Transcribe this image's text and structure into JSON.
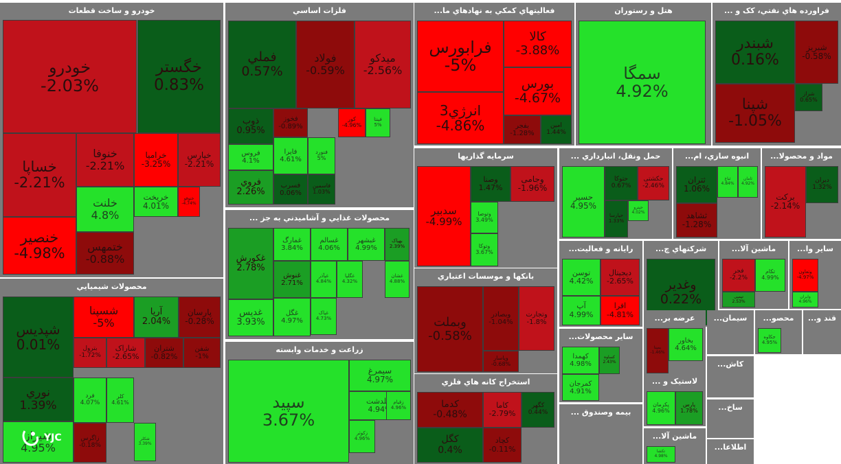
{
  "logo": {
    "text": "YJC"
  },
  "colors": {
    "strong_neg": "#ff0000",
    "mid_neg": "#c0121b",
    "weak_neg": "#8e0b0b",
    "weak_pos": "#0a5d1a",
    "mid_pos": "#1b9e24",
    "strong_pos": "#25e12a"
  },
  "chart_data": {
    "type": "treemap",
    "title": "",
    "sectors": [
      {
        "name": "خودرو و ساخت قطعات",
        "tiles": [
          {
            "symbol": "خودرو",
            "change": "-2.03%"
          },
          {
            "symbol": "خگستر",
            "change": "0.83%"
          },
          {
            "symbol": "خساپا",
            "change": "-2.21%"
          },
          {
            "symbol": "خنوفا",
            "change": "-2.21%"
          },
          {
            "symbol": "خراميا",
            "change": "-3.25%"
          },
          {
            "symbol": "خپارس",
            "change": "-2.21%"
          },
          {
            "symbol": "خلنت",
            "change": "4.8%"
          },
          {
            "symbol": "خریخت",
            "change": "4.01%"
          },
          {
            "symbol": "ختوقو",
            "change": "-4.74%"
          },
          {
            "symbol": "خنصير",
            "change": "-4.98%"
          },
          {
            "symbol": "ختمهس",
            "change": "-0.88%"
          }
        ]
      },
      {
        "name": "محصولات شيميايي",
        "tiles": [
          {
            "symbol": "شپديس",
            "change": "0.01%"
          },
          {
            "symbol": "شسپنا",
            "change": "-5%"
          },
          {
            "symbol": "آريا",
            "change": "2.04%"
          },
          {
            "symbol": "پارسان",
            "change": "-0.28%"
          },
          {
            "symbol": "بترول",
            "change": "-1.72%"
          },
          {
            "symbol": "شاراک",
            "change": "-2.65%"
          },
          {
            "symbol": "شتران",
            "change": "-0.82%"
          },
          {
            "symbol": "شفن",
            "change": "-1%"
          },
          {
            "symbol": "نوري",
            "change": "1.39%"
          },
          {
            "symbol": "فرد",
            "change": "4.07%"
          },
          {
            "symbol": "کلر",
            "change": "4.61%"
          },
          {
            "symbol": "شيراز",
            "change": "4.95%"
          },
          {
            "symbol": "زاگرس",
            "change": "-0.18%"
          },
          {
            "symbol": "شکلر",
            "change": "3.39%"
          }
        ]
      },
      {
        "name": "فلزات اساسي",
        "tiles": [
          {
            "symbol": "فملي",
            "change": "0.57%"
          },
          {
            "symbol": "فولاد",
            "change": "-0.59%"
          },
          {
            "symbol": "ميدكو",
            "change": "-2.56%"
          },
          {
            "symbol": "ذوب",
            "change": "0.95%"
          },
          {
            "symbol": "فخوز",
            "change": "-0.89%"
          },
          {
            "symbol": "فروس",
            "change": "4.1%"
          },
          {
            "symbol": "فايرا",
            "change": "4.61%"
          },
          {
            "symbol": "فنورد",
            "change": "5%"
          },
          {
            "symbol": "کور",
            "change": "-4.96%"
          },
          {
            "symbol": "فپنتا",
            "change": "5%"
          },
          {
            "symbol": "فروي",
            "change": "2.26%"
          },
          {
            "symbol": "فسرب",
            "change": "0.06%"
          },
          {
            "symbol": "فاسمين",
            "change": "1.03%"
          }
        ]
      },
      {
        "name": "محصولات غذايي و آشاميدني به جز ...",
        "tiles": [
          {
            "symbol": "غكورش",
            "change": "2.78%"
          },
          {
            "symbol": "غمارگ",
            "change": "3.84%"
          },
          {
            "symbol": "غسالم",
            "change": "4.06%"
          },
          {
            "symbol": "غبشهر",
            "change": "4.99%"
          },
          {
            "symbol": "بهپاک",
            "change": "2.39%"
          },
          {
            "symbol": "غنوش",
            "change": "2.71%"
          },
          {
            "symbol": "غپآذر",
            "change": "4.84%"
          },
          {
            "symbol": "غگلپا",
            "change": "4.32%"
          },
          {
            "symbol": "غدیس",
            "change": "3.93%"
          },
          {
            "symbol": "غگل",
            "change": "4.97%"
          },
          {
            "symbol": "غپاک",
            "change": "4.73%"
          },
          {
            "symbol": "غشان",
            "change": "4.88%"
          }
        ]
      },
      {
        "name": "زراعت و خدمات وابسته",
        "tiles": [
          {
            "symbol": "سپيد",
            "change": "3.67%"
          },
          {
            "symbol": "سيمرغ",
            "change": "4.97%"
          },
          {
            "symbol": "زگلدشت",
            "change": "4.94%"
          },
          {
            "symbol": "زقيام",
            "change": "4.96%"
          },
          {
            "symbol": "زکوثر",
            "change": "4.96%"
          }
        ]
      },
      {
        "name": "فعاليتهاي كمكي به نهادهاي ما...",
        "tiles": [
          {
            "symbol": "فرابورس",
            "change": "-5%"
          },
          {
            "symbol": "کالا",
            "change": "-3.88%"
          },
          {
            "symbol": "انرژي3",
            "change": "-4.86%"
          },
          {
            "symbol": "بورس",
            "change": "-4.67%"
          },
          {
            "symbol": "امين",
            "change": "1.44%"
          },
          {
            "symbol": "بفجر",
            "change": "-1.28%"
          }
        ]
      },
      {
        "name": "هتل و رستوران",
        "tiles": [
          {
            "symbol": "سمگا",
            "change": "4.92%"
          }
        ]
      },
      {
        "name": "فراورده هاي نفتي، كک و ...",
        "tiles": [
          {
            "symbol": "شبندر",
            "change": "0.16%"
          },
          {
            "symbol": "شبريز",
            "change": "-0.58%"
          },
          {
            "symbol": "شپنا",
            "change": "-1.05%"
          },
          {
            "symbol": "شراز",
            "change": "0.65%"
          }
        ]
      },
      {
        "name": "سرمايه گذاريها",
        "tiles": [
          {
            "symbol": "سدبير",
            "change": "-4.99%"
          },
          {
            "symbol": "وصنا",
            "change": "1.47%"
          },
          {
            "symbol": "وجامی",
            "change": "-1.96%"
          },
          {
            "symbol": "وتوصا",
            "change": "3.49%"
          },
          {
            "symbol": "وتوکا",
            "change": "3.67%"
          }
        ]
      },
      {
        "name": "حمل ونقل، انبارداري ...",
        "tiles": [
          {
            "symbol": "حسير",
            "change": "4.95%"
          },
          {
            "symbol": "حتوكا",
            "change": "0.67%"
          },
          {
            "symbol": "حکشتی",
            "change": "-2.46%"
          },
          {
            "symbol": "حپارسا",
            "change": "1.33%"
          },
          {
            "symbol": "حپترو",
            "change": "4.02%"
          }
        ]
      },
      {
        "name": "انبوه سازي، ام...",
        "tiles": [
          {
            "symbol": "ثتران",
            "change": "1.06%"
          },
          {
            "symbol": "ثباغ",
            "change": "4.84%"
          },
          {
            "symbol": "ثشاهد",
            "change": "-1.28%"
          },
          {
            "symbol": "ثامان",
            "change": "4.92%"
          }
        ]
      },
      {
        "name": "مواد و محصولا...",
        "tiles": [
          {
            "symbol": "بركت",
            "change": "-2.14%"
          },
          {
            "symbol": "دبران",
            "change": "1.32%"
          }
        ]
      },
      {
        "name": "بانكها و موسسات اعتباري",
        "tiles": [
          {
            "symbol": "وبملت",
            "change": "-0.58%"
          },
          {
            "symbol": "وبصادر",
            "change": "-1.04%"
          },
          {
            "symbol": "وتجارت",
            "change": "-1.8%"
          },
          {
            "symbol": "وپاسار",
            "change": "-0.68%"
          }
        ]
      },
      {
        "name": "رايانه و فعاليت...",
        "tiles": [
          {
            "symbol": "توسن",
            "change": "4.42%"
          },
          {
            "symbol": "آپ",
            "change": "4.99%"
          },
          {
            "symbol": "ديجيتال",
            "change": "-2.65%"
          },
          {
            "symbol": "افرا",
            "change": "-4.81%"
          }
        ]
      },
      {
        "name": "شركتهاي چ...",
        "tiles": [
          {
            "symbol": "وغدير",
            "change": "0.22%"
          }
        ]
      },
      {
        "name": "ماشين آلا...",
        "tiles": [
          {
            "symbol": "فجر",
            "change": "-2.2%"
          },
          {
            "symbol": "تکام",
            "change": "4.99%"
          },
          {
            "symbol": "تپمپی",
            "change": "2.53%"
          }
        ]
      },
      {
        "name": "ساير وا...",
        "tiles": [
          {
            "symbol": "وتعاون",
            "change": "-4.97%"
          },
          {
            "symbol": "وايران",
            "change": "4.96%"
          }
        ]
      },
      {
        "name": "ساير محصولات...",
        "tiles": [
          {
            "symbol": "کهمدا",
            "change": "4.98%"
          },
          {
            "symbol": "کساوه",
            "change": "2.43%"
          },
          {
            "symbol": "کمرجان",
            "change": "4.91%"
          }
        ]
      },
      {
        "name": "عرضه بر...",
        "tiles": [
          {
            "symbol": "بمپنا",
            "change": "-1.46%"
          },
          {
            "symbol": "بخاور",
            "change": "4.64%"
          }
        ]
      },
      {
        "name": "سيمان...",
        "tiles": []
      },
      {
        "name": "محصو...",
        "tiles": [
          {
            "symbol": "جکاوه",
            "change": "4.95%"
          }
        ]
      },
      {
        "name": "قند و...",
        "tiles": []
      },
      {
        "name": "استخراج کانه هاي فلزي",
        "tiles": [
          {
            "symbol": "كدما",
            "change": "-0.48%"
          },
          {
            "symbol": "کاما",
            "change": "-2.79%"
          },
          {
            "symbol": "کگهر",
            "change": "0.44%"
          },
          {
            "symbol": "كگل",
            "change": "0.4%"
          },
          {
            "symbol": "کچاد",
            "change": "-0.11%"
          }
        ]
      },
      {
        "name": "بيمه وصندوق ...",
        "tiles": []
      },
      {
        "name": "لاستيک و ...",
        "tiles": [
          {
            "symbol": "پکرمان",
            "change": "4.96%"
          },
          {
            "symbol": "پارس",
            "change": "1.78%"
          }
        ]
      },
      {
        "name": "ماشين آلا...",
        "tiles": [
          {
            "symbol": "تکشا",
            "change": "4.98%"
          }
        ]
      },
      {
        "name": "كاش...",
        "tiles": []
      },
      {
        "name": "ساخ...",
        "tiles": []
      },
      {
        "name": "اطلاعا...",
        "tiles": []
      }
    ]
  }
}
